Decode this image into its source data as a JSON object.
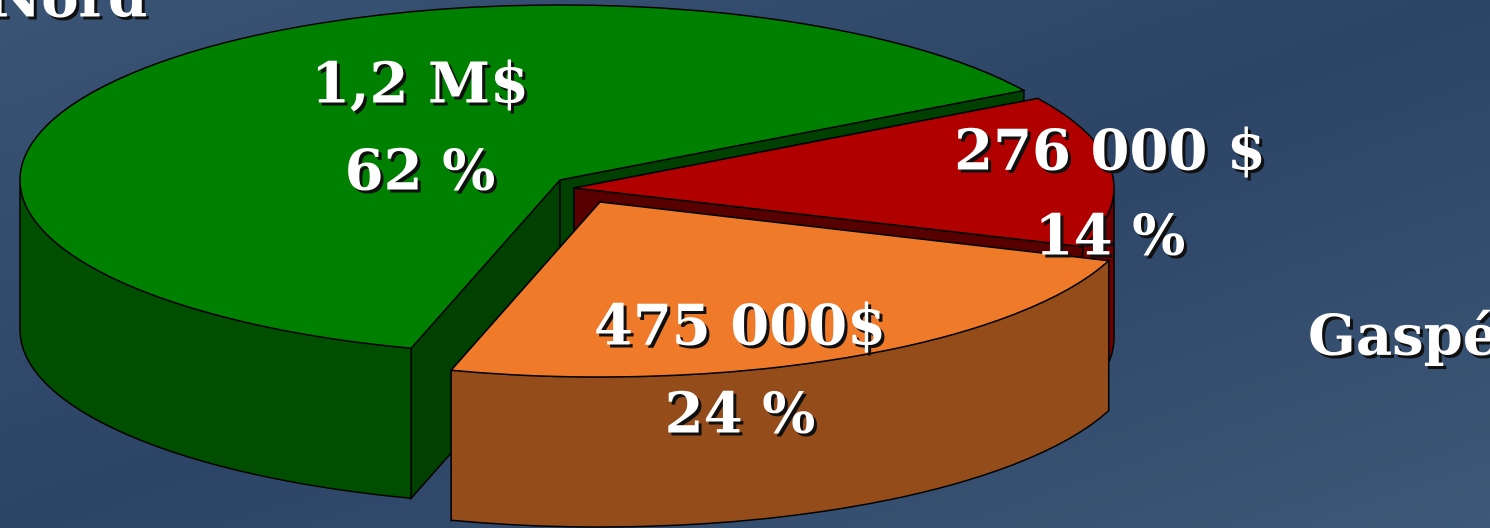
{
  "chart_data": {
    "type": "pie3d",
    "categories": [
      "Nord",
      "Gaspésie",
      null
    ],
    "values": [
      62,
      14,
      24
    ],
    "value_labels": [
      "62 %",
      "14 %",
      "24 %"
    ],
    "amount_labels": [
      "1,2 M$",
      "276 000  $",
      "475 000$"
    ],
    "colors": [
      "#008000",
      "#b00000",
      "#ee7a2a"
    ]
  }
}
